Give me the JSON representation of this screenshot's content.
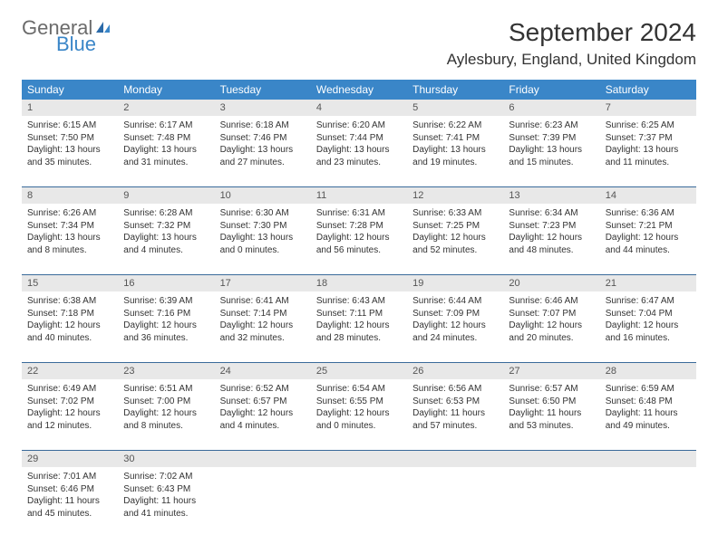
{
  "logo": {
    "general": "General",
    "blue": "Blue"
  },
  "title": "September 2024",
  "location": "Aylesbury, England, United Kingdom",
  "colors": {
    "header_bg": "#3a86c8",
    "daynum_bg": "#e8e8e8",
    "rule": "#3a6a9a",
    "text": "#333333",
    "logo_gray": "#6b6b6b",
    "logo_blue": "#3a86c8"
  },
  "day_labels": [
    "Sunday",
    "Monday",
    "Tuesday",
    "Wednesday",
    "Thursday",
    "Friday",
    "Saturday"
  ],
  "weeks": [
    {
      "nums": [
        "1",
        "2",
        "3",
        "4",
        "5",
        "6",
        "7"
      ],
      "cells": [
        {
          "sunrise": "Sunrise: 6:15 AM",
          "sunset": "Sunset: 7:50 PM",
          "daylight": "Daylight: 13 hours and 35 minutes."
        },
        {
          "sunrise": "Sunrise: 6:17 AM",
          "sunset": "Sunset: 7:48 PM",
          "daylight": "Daylight: 13 hours and 31 minutes."
        },
        {
          "sunrise": "Sunrise: 6:18 AM",
          "sunset": "Sunset: 7:46 PM",
          "daylight": "Daylight: 13 hours and 27 minutes."
        },
        {
          "sunrise": "Sunrise: 6:20 AM",
          "sunset": "Sunset: 7:44 PM",
          "daylight": "Daylight: 13 hours and 23 minutes."
        },
        {
          "sunrise": "Sunrise: 6:22 AM",
          "sunset": "Sunset: 7:41 PM",
          "daylight": "Daylight: 13 hours and 19 minutes."
        },
        {
          "sunrise": "Sunrise: 6:23 AM",
          "sunset": "Sunset: 7:39 PM",
          "daylight": "Daylight: 13 hours and 15 minutes."
        },
        {
          "sunrise": "Sunrise: 6:25 AM",
          "sunset": "Sunset: 7:37 PM",
          "daylight": "Daylight: 13 hours and 11 minutes."
        }
      ]
    },
    {
      "nums": [
        "8",
        "9",
        "10",
        "11",
        "12",
        "13",
        "14"
      ],
      "cells": [
        {
          "sunrise": "Sunrise: 6:26 AM",
          "sunset": "Sunset: 7:34 PM",
          "daylight": "Daylight: 13 hours and 8 minutes."
        },
        {
          "sunrise": "Sunrise: 6:28 AM",
          "sunset": "Sunset: 7:32 PM",
          "daylight": "Daylight: 13 hours and 4 minutes."
        },
        {
          "sunrise": "Sunrise: 6:30 AM",
          "sunset": "Sunset: 7:30 PM",
          "daylight": "Daylight: 13 hours and 0 minutes."
        },
        {
          "sunrise": "Sunrise: 6:31 AM",
          "sunset": "Sunset: 7:28 PM",
          "daylight": "Daylight: 12 hours and 56 minutes."
        },
        {
          "sunrise": "Sunrise: 6:33 AM",
          "sunset": "Sunset: 7:25 PM",
          "daylight": "Daylight: 12 hours and 52 minutes."
        },
        {
          "sunrise": "Sunrise: 6:34 AM",
          "sunset": "Sunset: 7:23 PM",
          "daylight": "Daylight: 12 hours and 48 minutes."
        },
        {
          "sunrise": "Sunrise: 6:36 AM",
          "sunset": "Sunset: 7:21 PM",
          "daylight": "Daylight: 12 hours and 44 minutes."
        }
      ]
    },
    {
      "nums": [
        "15",
        "16",
        "17",
        "18",
        "19",
        "20",
        "21"
      ],
      "cells": [
        {
          "sunrise": "Sunrise: 6:38 AM",
          "sunset": "Sunset: 7:18 PM",
          "daylight": "Daylight: 12 hours and 40 minutes."
        },
        {
          "sunrise": "Sunrise: 6:39 AM",
          "sunset": "Sunset: 7:16 PM",
          "daylight": "Daylight: 12 hours and 36 minutes."
        },
        {
          "sunrise": "Sunrise: 6:41 AM",
          "sunset": "Sunset: 7:14 PM",
          "daylight": "Daylight: 12 hours and 32 minutes."
        },
        {
          "sunrise": "Sunrise: 6:43 AM",
          "sunset": "Sunset: 7:11 PM",
          "daylight": "Daylight: 12 hours and 28 minutes."
        },
        {
          "sunrise": "Sunrise: 6:44 AM",
          "sunset": "Sunset: 7:09 PM",
          "daylight": "Daylight: 12 hours and 24 minutes."
        },
        {
          "sunrise": "Sunrise: 6:46 AM",
          "sunset": "Sunset: 7:07 PM",
          "daylight": "Daylight: 12 hours and 20 minutes."
        },
        {
          "sunrise": "Sunrise: 6:47 AM",
          "sunset": "Sunset: 7:04 PM",
          "daylight": "Daylight: 12 hours and 16 minutes."
        }
      ]
    },
    {
      "nums": [
        "22",
        "23",
        "24",
        "25",
        "26",
        "27",
        "28"
      ],
      "cells": [
        {
          "sunrise": "Sunrise: 6:49 AM",
          "sunset": "Sunset: 7:02 PM",
          "daylight": "Daylight: 12 hours and 12 minutes."
        },
        {
          "sunrise": "Sunrise: 6:51 AM",
          "sunset": "Sunset: 7:00 PM",
          "daylight": "Daylight: 12 hours and 8 minutes."
        },
        {
          "sunrise": "Sunrise: 6:52 AM",
          "sunset": "Sunset: 6:57 PM",
          "daylight": "Daylight: 12 hours and 4 minutes."
        },
        {
          "sunrise": "Sunrise: 6:54 AM",
          "sunset": "Sunset: 6:55 PM",
          "daylight": "Daylight: 12 hours and 0 minutes."
        },
        {
          "sunrise": "Sunrise: 6:56 AM",
          "sunset": "Sunset: 6:53 PM",
          "daylight": "Daylight: 11 hours and 57 minutes."
        },
        {
          "sunrise": "Sunrise: 6:57 AM",
          "sunset": "Sunset: 6:50 PM",
          "daylight": "Daylight: 11 hours and 53 minutes."
        },
        {
          "sunrise": "Sunrise: 6:59 AM",
          "sunset": "Sunset: 6:48 PM",
          "daylight": "Daylight: 11 hours and 49 minutes."
        }
      ]
    },
    {
      "nums": [
        "29",
        "30",
        "",
        "",
        "",
        "",
        ""
      ],
      "cells": [
        {
          "sunrise": "Sunrise: 7:01 AM",
          "sunset": "Sunset: 6:46 PM",
          "daylight": "Daylight: 11 hours and 45 minutes."
        },
        {
          "sunrise": "Sunrise: 7:02 AM",
          "sunset": "Sunset: 6:43 PM",
          "daylight": "Daylight: 11 hours and 41 minutes."
        },
        null,
        null,
        null,
        null,
        null
      ]
    }
  ]
}
